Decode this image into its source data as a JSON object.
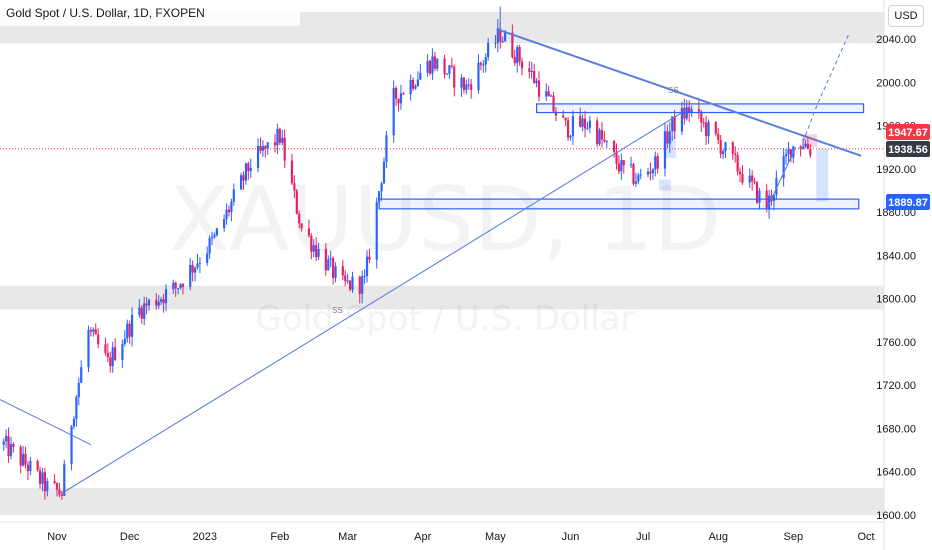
{
  "header": {
    "title": "Gold Spot / U.S. Dollar, 1D, FXOPEN",
    "currency": "USD"
  },
  "watermark": {
    "symbol": "XAUUSD, 1D",
    "description": "Gold Spot / U.S. Dollar"
  },
  "colors": {
    "up": "#2962ff",
    "down": "#e91e63",
    "trendline": "#5b7fde",
    "zone_fill": "#e4e4e4",
    "last_price_tag": "#f23645",
    "current_price_tag": "#363a45",
    "marked_level_tag": "#2962ff",
    "current_price_line": "#f23645"
  },
  "price_tags": {
    "last": "1947.67",
    "current": "1938.56",
    "marked": "1889.87"
  },
  "annotations": {
    "ss_label": "SS",
    "ss_label_low": "SS"
  },
  "chart_data": {
    "type": "candlestick",
    "symbol": "XAUUSD",
    "timeframe": "1D",
    "x_axis": {
      "ticks": [
        {
          "label": "Nov",
          "date": "2022-11-01"
        },
        {
          "label": "Dec",
          "date": "2022-12-01"
        },
        {
          "label": "2023",
          "date": "2023-01-01"
        },
        {
          "label": "Feb",
          "date": "2023-02-01"
        },
        {
          "label": "Mar",
          "date": "2023-03-01"
        },
        {
          "label": "Apr",
          "date": "2023-04-01"
        },
        {
          "label": "May",
          "date": "2023-05-01"
        },
        {
          "label": "Jun",
          "date": "2023-06-01"
        },
        {
          "label": "Jul",
          "date": "2023-07-01"
        },
        {
          "label": "Aug",
          "date": "2023-08-01"
        },
        {
          "label": "Sep",
          "date": "2023-09-01"
        },
        {
          "label": "Oct",
          "date": "2023-10-01"
        }
      ]
    },
    "y_axis": {
      "ticks": [
        "2040.00",
        "2000.00",
        "1960.00",
        "1920.00",
        "1880.00",
        "1840.00",
        "1800.00",
        "1760.00",
        "1720.00",
        "1680.00",
        "1640.00",
        "1600.00"
      ],
      "range": [
        1595,
        2070
      ]
    },
    "price_path": [
      {
        "date": "2022-10-10",
        "price": 1665
      },
      {
        "date": "2022-10-20",
        "price": 1645
      },
      {
        "date": "2022-10-28",
        "price": 1625
      },
      {
        "date": "2022-11-03",
        "price": 1620
      },
      {
        "date": "2022-11-06",
        "price": 1675
      },
      {
        "date": "2022-11-14",
        "price": 1770
      },
      {
        "date": "2022-11-22",
        "price": 1740
      },
      {
        "date": "2022-12-05",
        "price": 1790
      },
      {
        "date": "2022-12-20",
        "price": 1810
      },
      {
        "date": "2023-01-05",
        "price": 1855
      },
      {
        "date": "2023-01-20",
        "price": 1925
      },
      {
        "date": "2023-02-01",
        "price": 1950
      },
      {
        "date": "2023-02-10",
        "price": 1865
      },
      {
        "date": "2023-02-27",
        "price": 1812
      },
      {
        "date": "2023-03-08",
        "price": 1815
      },
      {
        "date": "2023-03-20",
        "price": 1985
      },
      {
        "date": "2023-04-05",
        "price": 2020
      },
      {
        "date": "2023-04-19",
        "price": 1995
      },
      {
        "date": "2023-05-03",
        "price": 2045
      },
      {
        "date": "2023-05-15",
        "price": 2010
      },
      {
        "date": "2023-05-30",
        "price": 1958
      },
      {
        "date": "2023-06-09",
        "price": 1962
      },
      {
        "date": "2023-06-22",
        "price": 1920
      },
      {
        "date": "2023-06-29",
        "price": 1910
      },
      {
        "date": "2023-07-06",
        "price": 1925
      },
      {
        "date": "2023-07-13",
        "price": 1960
      },
      {
        "date": "2023-07-20",
        "price": 1975
      },
      {
        "date": "2023-08-01",
        "price": 1945
      },
      {
        "date": "2023-08-21",
        "price": 1885
      },
      {
        "date": "2023-08-31",
        "price": 1940
      },
      {
        "date": "2023-09-05",
        "price": 1945
      },
      {
        "date": "2023-09-08",
        "price": 1938
      }
    ],
    "zones": [
      {
        "from": 2036,
        "to": 2065
      },
      {
        "from": 1790,
        "to": 1812
      },
      {
        "from": 1600,
        "to": 1625
      }
    ],
    "boxes": [
      {
        "from_date": "2023-05-18",
        "to_date": "2023-09-30",
        "from": 1972,
        "to": 1980
      },
      {
        "from_date": "2023-03-14",
        "to_date": "2023-09-28",
        "from": 1883,
        "to": 1892
      }
    ],
    "trendlines": [
      {
        "start": {
          "date": "2023-05-03",
          "price": 2048
        },
        "end": {
          "date": "2023-09-29",
          "price": 1932
        }
      },
      {
        "start": {
          "date": "2022-11-03",
          "price": 1620
        },
        "end": {
          "date": "2023-07-17",
          "price": 1972
        }
      },
      {
        "start": {
          "date": "2022-10-01",
          "price": 1715
        },
        "end": {
          "date": "2022-11-15",
          "price": 1665
        }
      },
      {
        "start": {
          "date": "2023-08-21",
          "price": 1883
        },
        "end": {
          "date": "2023-09-02",
          "price": 1940
        }
      }
    ],
    "projection": [
      {
        "date": "2023-09-05",
        "price": 1945
      },
      {
        "date": "2023-09-11",
        "price": 1980
      },
      {
        "date": "2023-09-24",
        "price": 2045
      }
    ],
    "vertical_line": {
      "date": "2023-05-03",
      "from": 2048,
      "to": 2070
    },
    "current_price_line": 1938.56,
    "position_markers": [
      {
        "date": "2023-09-13",
        "from": 1889.87,
        "to": 1938.56
      },
      {
        "date": "2023-07-12",
        "from": 1930,
        "to": 1950
      },
      {
        "date": "2023-07-10",
        "from": 1900,
        "to": 1910
      }
    ]
  }
}
